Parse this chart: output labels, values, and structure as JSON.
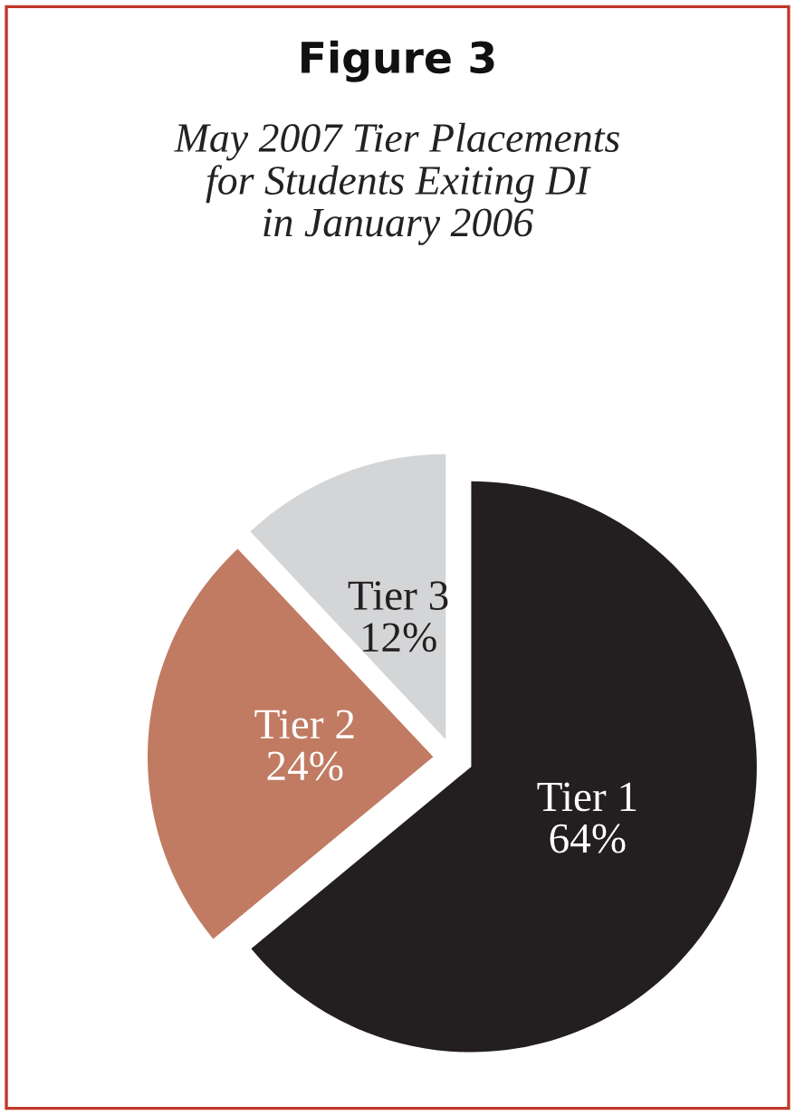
{
  "chart_data": {
    "type": "pie",
    "title": "Figure 3",
    "subtitle": "May 2007 Tier Placements\nfor Students Exiting DI\nin January 2006",
    "categories": [
      "Tier 1",
      "Tier 2",
      "Tier 3"
    ],
    "values": [
      64,
      24,
      12
    ],
    "value_labels": [
      "64%",
      "24%",
      "12%"
    ],
    "colors": [
      "#231f20",
      "#c07b62",
      "#d4d5d7"
    ],
    "legend": false
  }
}
